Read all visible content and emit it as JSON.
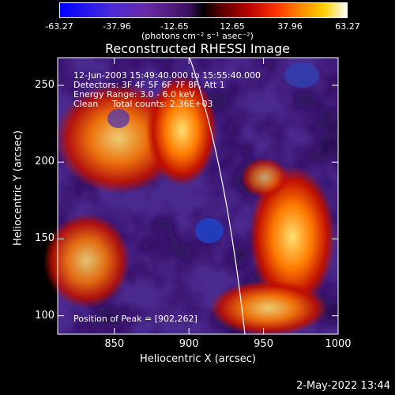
{
  "colorbar": {
    "ticks": [
      "-63.27",
      "-37.96",
      "-12.65",
      "12.65",
      "37.96",
      "63.27"
    ],
    "tick_values": [
      -63.27,
      -37.96,
      -12.65,
      12.65,
      37.96,
      63.27
    ],
    "range": [
      -63.27,
      63.27
    ],
    "units_text": "(photons cm⁻² s⁻¹ asec⁻²)",
    "palette": [
      "#0000ff",
      "#6a2aa8",
      "#000000",
      "#b00000",
      "#ff8a00",
      "#ffffff"
    ]
  },
  "plot": {
    "title": "Reconstructed RHESSI Image",
    "info_lines": [
      "12-Jun-2003 15:49:40.000 to 15:55:40.000",
      "Detectors: 3F 4F 5F 6F 7F 8F, Att 1",
      "Energy Range: 3.0 - 6.0 keV",
      "Clean     Total counts: 2.36E+03"
    ],
    "peak_label": "Position of Peak = [902,262]",
    "peak_position": [
      902,
      262
    ],
    "xlabel": "Heliocentric X (arcsec)",
    "ylabel": "Heliocentric Y (arcsec)",
    "xlim": [
      812,
      1000
    ],
    "ylim": [
      88,
      268
    ],
    "xticks": [
      "850",
      "900",
      "950",
      "1000"
    ],
    "xtick_values": [
      850,
      900,
      950,
      1000
    ],
    "yticks": [
      "100",
      "150",
      "200",
      "250"
    ],
    "ytick_values": [
      100,
      150,
      200,
      250
    ],
    "limb_color": "#ffffff"
  },
  "footer": {
    "timestamp": "2-May-2022 13:44"
  }
}
